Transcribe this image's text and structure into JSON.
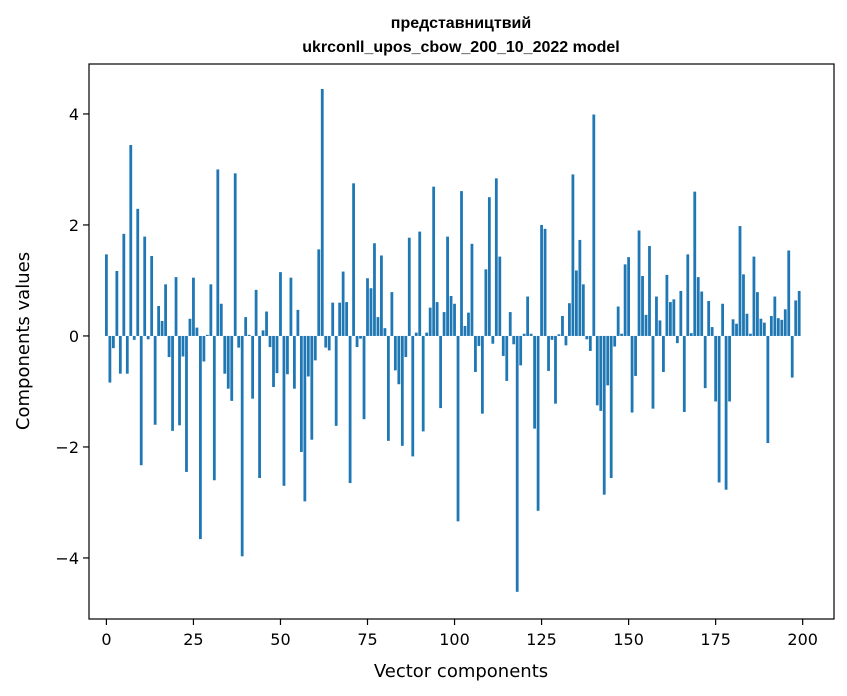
{
  "chart_data": {
    "type": "bar",
    "title": "представництвий",
    "subtitle": "ukrconll_upos_cbow_200_10_2022 model",
    "xlabel": "Vector components",
    "ylabel": "Components values",
    "xlim": [
      -5,
      209
    ],
    "ylim": [
      -5.1,
      4.9
    ],
    "xticks": [
      0,
      25,
      50,
      75,
      100,
      125,
      150,
      175,
      200
    ],
    "yticks": [
      -4,
      -2,
      0,
      2,
      4
    ],
    "xtick_labels": [
      "0",
      "25",
      "50",
      "75",
      "100",
      "125",
      "150",
      "175",
      "200"
    ],
    "ytick_labels": [
      "−4",
      "−2",
      "0",
      "2",
      "4"
    ],
    "grid": false,
    "legend": "none",
    "color": "#1f77b4",
    "values": [
      1.47,
      -0.84,
      -0.22,
      1.17,
      -0.68,
      1.84,
      -0.68,
      3.44,
      -0.07,
      2.29,
      -2.33,
      1.79,
      -0.06,
      1.44,
      -1.6,
      0.54,
      0.27,
      0.93,
      -0.38,
      -1.71,
      1.06,
      -1.61,
      -0.37,
      -2.45,
      0.31,
      1.05,
      0.15,
      -3.66,
      -0.46,
      0.02,
      0.93,
      -2.6,
      3.0,
      0.58,
      -0.68,
      -0.95,
      -1.17,
      2.93,
      -0.21,
      -3.97,
      0.34,
      0.02,
      -1.13,
      0.83,
      -2.56,
      0.1,
      0.44,
      -0.2,
      -0.92,
      -0.67,
      1.15,
      -2.7,
      -0.69,
      1.05,
      -0.95,
      0.47,
      -2.09,
      -2.98,
      -0.73,
      -1.87,
      -0.44,
      1.56,
      4.45,
      -0.21,
      -0.26,
      0.6,
      -1.62,
      0.6,
      1.16,
      0.61,
      -2.65,
      2.75,
      -0.2,
      -0.05,
      -1.5,
      1.04,
      0.86,
      1.67,
      0.34,
      1.45,
      0.14,
      -1.89,
      0.79,
      -0.62,
      -0.87,
      -1.98,
      -0.38,
      1.77,
      -2.17,
      0.06,
      1.88,
      -1.72,
      0.06,
      0.51,
      2.69,
      0.61,
      -1.3,
      0.43,
      1.79,
      0.72,
      0.58,
      -3.34,
      2.61,
      0.18,
      0.42,
      1.66,
      -0.65,
      -0.18,
      -1.4,
      1.2,
      2.5,
      -0.14,
      2.84,
      1.43,
      -0.36,
      -0.81,
      0.43,
      -0.15,
      -4.61,
      -0.53,
      0.04,
      0.71,
      0.04,
      -1.67,
      -3.15,
      2.0,
      1.93,
      -0.63,
      -0.07,
      -1.22,
      0.03,
      0.36,
      -0.17,
      0.59,
      2.91,
      1.18,
      1.73,
      0.93,
      -0.06,
      -0.27,
      3.99,
      -1.25,
      -1.35,
      -2.86,
      -0.89,
      -2.56,
      -0.19,
      0.53,
      0.04,
      1.29,
      1.42,
      -1.38,
      -0.72,
      1.9,
      1.08,
      0.38,
      1.62,
      -1.31,
      0.71,
      0.28,
      -0.65,
      1.1,
      0.61,
      0.66,
      -0.13,
      0.81,
      -1.37,
      1.47,
      0.05,
      2.6,
      1.06,
      0.8,
      -0.94,
      0.63,
      0.16,
      -1.18,
      -2.64,
      0.58,
      -2.77,
      -1.18,
      0.3,
      0.22,
      1.98,
      1.11,
      0.4,
      0.04,
      1.43,
      0.79,
      0.31,
      0.24,
      -1.93,
      0.36,
      0.71,
      0.32,
      0.29,
      0.48,
      1.54,
      -0.75,
      0.64,
      0.81
    ]
  }
}
